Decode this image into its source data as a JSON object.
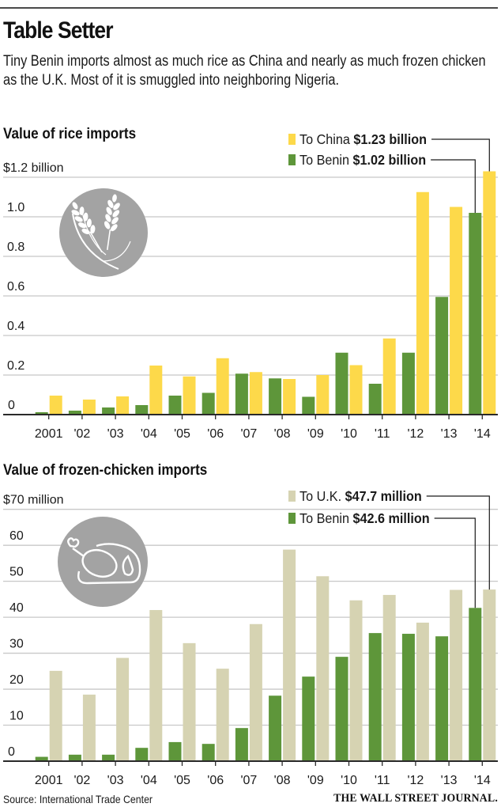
{
  "header": {
    "title": "Table Setter",
    "subtitle": "Tiny Benin imports almost as much rice as China and nearly as much frozen chicken as the U.K. Most of it is smuggled into neighboring Nigeria."
  },
  "footer": {
    "source": "Source: International Trade Center",
    "brand": "THE WALL STREET JOURNAL."
  },
  "colors": {
    "benin": "#5E963A",
    "china": "#FDD94A",
    "uk": "#D6D3B2",
    "icon": "#A3A3A3",
    "grid": "#C8C8C8",
    "axis": "#2a2a2a"
  },
  "icons": {
    "rice": "rice-wheat-icon",
    "chicken": "roast-chicken-icon"
  },
  "chart_data": [
    {
      "type": "bar",
      "title": "Value of rice imports",
      "xlabel": "",
      "ylabel": "",
      "unit_label": "$1.2 billion",
      "categories": [
        "2001",
        "'02",
        "'03",
        "'04",
        "'05",
        "'06",
        "'07",
        "'08",
        "'09",
        "'10",
        "'11",
        "'12",
        "'13",
        "'14"
      ],
      "yticks": [
        0,
        0.2,
        0.4,
        0.6,
        0.8,
        1.0,
        1.2
      ],
      "ytick_labels": [
        "0",
        "0.2",
        "0.4",
        "0.6",
        "0.8",
        "1.0",
        "$1.2 billion"
      ],
      "ylim": [
        0,
        1.2
      ],
      "grid": true,
      "legend_position": "top-right",
      "series": [
        {
          "name": "To Benin",
          "color_key": "benin",
          "values": [
            0.012,
            0.02,
            0.036,
            0.048,
            0.096,
            0.11,
            0.207,
            0.183,
            0.09,
            0.313,
            0.156,
            0.313,
            0.595,
            1.02
          ],
          "annotation": "$1.02 billion"
        },
        {
          "name": "To China",
          "color_key": "china",
          "values": [
            0.096,
            0.076,
            0.092,
            0.248,
            0.193,
            0.285,
            0.215,
            0.18,
            0.2,
            0.25,
            0.385,
            1.125,
            1.05,
            1.23
          ],
          "annotation": "$1.23 billion"
        }
      ],
      "legend_order": [
        1,
        0
      ]
    },
    {
      "type": "bar",
      "title": "Value of frozen-chicken imports",
      "xlabel": "",
      "ylabel": "",
      "unit_label": "$70 million",
      "categories": [
        "2001",
        "'02",
        "'03",
        "'04",
        "'05",
        "'06",
        "'07",
        "'08",
        "'09",
        "'10",
        "'11",
        "'12",
        "'13",
        "'14"
      ],
      "yticks": [
        0,
        10,
        20,
        30,
        40,
        50,
        60,
        70
      ],
      "ytick_labels": [
        "0",
        "10",
        "20",
        "30",
        "40",
        "50",
        "60",
        "$70 million"
      ],
      "ylim": [
        0,
        70
      ],
      "grid": true,
      "legend_position": "top-right",
      "series": [
        {
          "name": "To Benin",
          "color_key": "benin",
          "values": [
            1.2,
            1.8,
            1.8,
            3.7,
            5.3,
            4.8,
            9.2,
            18.2,
            23.5,
            29.0,
            35.6,
            35.4,
            34.7,
            42.6
          ],
          "annotation": "$42.6 million"
        },
        {
          "name": "To U.K.",
          "color_key": "uk",
          "values": [
            25.1,
            18.5,
            28.7,
            42.0,
            32.8,
            25.7,
            38.1,
            58.8,
            51.4,
            44.7,
            46.2,
            38.5,
            47.6,
            47.7
          ],
          "annotation": "$47.7 million"
        }
      ],
      "legend_order": [
        1,
        0
      ]
    }
  ]
}
